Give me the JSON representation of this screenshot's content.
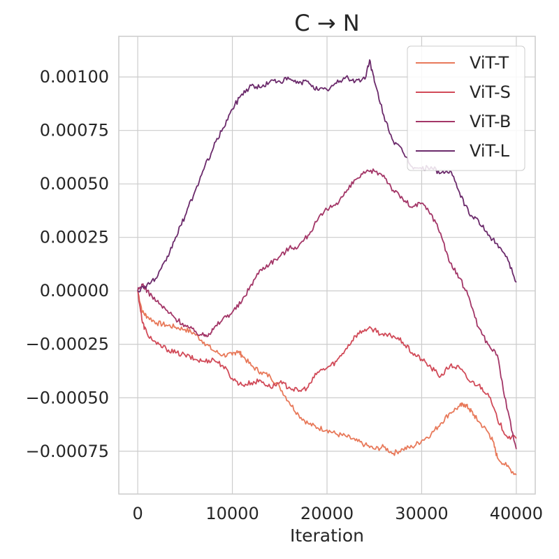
{
  "chart_data": {
    "type": "line",
    "title": "C → N",
    "xlabel": "Iteration",
    "ylabel": "",
    "xlim": [
      -2000,
      42000
    ],
    "ylim": [
      -0.00095,
      0.00119
    ],
    "grid": true,
    "legend_position": "top-right",
    "x_ticks": [
      0,
      10000,
      20000,
      30000,
      40000
    ],
    "x_tick_labels": [
      "0",
      "10000",
      "20000",
      "30000",
      "40000"
    ],
    "y_ticks": [
      -0.00075,
      -0.0005,
      -0.00025,
      0.0,
      0.00025,
      0.0005,
      0.00075,
      0.001
    ],
    "y_tick_labels": [
      "−0.00075",
      "−0.00050",
      "−0.00025",
      "0.00000",
      "0.00025",
      "0.00050",
      "0.00075",
      "0.00100"
    ],
    "series": [
      {
        "name": "ViT-T",
        "color": "#e8795a",
        "x": [
          0,
          500,
          1000,
          2000,
          3000,
          4000,
          5000,
          6000,
          7000,
          8000,
          9000,
          10000,
          10500,
          11000,
          12000,
          13000,
          14000,
          15000,
          16000,
          17000,
          18000,
          19000,
          20000,
          21000,
          22000,
          23000,
          24000,
          25000,
          26000,
          27000,
          28000,
          29000,
          30000,
          31000,
          32000,
          33000,
          34000,
          34500,
          35000,
          35500,
          36000,
          37000,
          37500,
          38000,
          39000,
          40000
        ],
        "y": [
          0.0,
          -0.0001,
          -0.00012,
          -0.00015,
          -0.00016,
          -0.00017,
          -0.00018,
          -0.0002,
          -0.00024,
          -0.00028,
          -0.0003,
          -0.0003,
          -0.00028,
          -0.0003,
          -0.00035,
          -0.00038,
          -0.0004,
          -0.00045,
          -0.00052,
          -0.00058,
          -0.00062,
          -0.00064,
          -0.00065,
          -0.00067,
          -0.00068,
          -0.0007,
          -0.00072,
          -0.00074,
          -0.00073,
          -0.00076,
          -0.00074,
          -0.00073,
          -0.0007,
          -0.00067,
          -0.00062,
          -0.00057,
          -0.00054,
          -0.00053,
          -0.00055,
          -0.00058,
          -0.00061,
          -0.00066,
          -0.0007,
          -0.00078,
          -0.00082,
          -0.00086
        ]
      },
      {
        "name": "ViT-S",
        "color": "#d14a58",
        "x": [
          0,
          500,
          1000,
          2000,
          3000,
          4000,
          5000,
          6000,
          7000,
          8000,
          9000,
          10000,
          11000,
          12000,
          13000,
          14000,
          15000,
          16000,
          17000,
          18000,
          19000,
          20000,
          21000,
          22000,
          23000,
          24000,
          25000,
          26000,
          27000,
          28000,
          29000,
          30000,
          31000,
          32000,
          33000,
          34000,
          35000,
          36000,
          37000,
          38000,
          39000,
          40000
        ],
        "y": [
          0.0,
          -0.00015,
          -0.0002,
          -0.00025,
          -0.00027,
          -0.00029,
          -0.0003,
          -0.00032,
          -0.00033,
          -0.00032,
          -0.00035,
          -0.00041,
          -0.00044,
          -0.00043,
          -0.00042,
          -0.00045,
          -0.00043,
          -0.00045,
          -0.00047,
          -0.00045,
          -0.00038,
          -0.00036,
          -0.00033,
          -0.00027,
          -0.00021,
          -0.00018,
          -0.00018,
          -0.00021,
          -0.00021,
          -0.00024,
          -0.00029,
          -0.00032,
          -0.00036,
          -0.0004,
          -0.00035,
          -0.00036,
          -0.00042,
          -0.00044,
          -0.00048,
          -0.0006,
          -0.00068,
          -0.00069
        ]
      },
      {
        "name": "ViT-B",
        "color": "#a33667",
        "x": [
          0,
          500,
          1000,
          2000,
          3000,
          4000,
          5000,
          6000,
          7000,
          7500,
          8000,
          9000,
          10000,
          11000,
          12000,
          13000,
          14000,
          15000,
          16000,
          17000,
          18000,
          19000,
          20000,
          21000,
          22000,
          23000,
          24000,
          25000,
          26000,
          27000,
          28000,
          29000,
          30000,
          31000,
          32000,
          33000,
          34000,
          35000,
          36000,
          37000,
          38000,
          39000,
          40000
        ],
        "y": [
          0.0,
          3e-05,
          0.0,
          -5e-05,
          -9e-05,
          -0.00013,
          -0.00016,
          -0.00019,
          -0.00021,
          -0.0002,
          -0.00018,
          -0.00013,
          -0.0001,
          -5e-05,
          3e-05,
          0.0001,
          0.00013,
          0.00016,
          0.0002,
          0.00021,
          0.00026,
          0.00033,
          0.00038,
          0.00041,
          0.00046,
          0.00052,
          0.00055,
          0.00056,
          0.00054,
          0.00047,
          0.00043,
          0.00039,
          0.00041,
          0.00036,
          0.00027,
          0.00013,
          6e-05,
          -3e-05,
          -0.00017,
          -0.00025,
          -0.0003,
          -0.00055,
          -0.00074
        ]
      },
      {
        "name": "ViT-L",
        "color": "#6b2a6b",
        "x": [
          0,
          1000,
          2000,
          3000,
          4000,
          5000,
          6000,
          7000,
          8000,
          9000,
          10000,
          11000,
          12000,
          13000,
          14000,
          15000,
          16000,
          17000,
          18000,
          19000,
          20000,
          21000,
          22000,
          23000,
          24000,
          24500,
          25000,
          26000,
          27000,
          28000,
          29000,
          30000,
          31000,
          32000,
          33000,
          34000,
          35000,
          36000,
          37000,
          38000,
          39000,
          40000
        ],
        "y": [
          0.0,
          3e-05,
          6e-05,
          0.00014,
          0.00025,
          0.00035,
          0.00046,
          0.00057,
          0.00067,
          0.00076,
          0.00085,
          0.00092,
          0.00096,
          0.00095,
          0.00098,
          0.00098,
          0.00099,
          0.00097,
          0.00098,
          0.00094,
          0.00094,
          0.00097,
          0.001,
          0.00098,
          0.00099,
          0.00108,
          0.00098,
          0.00082,
          0.0007,
          0.00065,
          0.00058,
          0.00057,
          0.00058,
          0.00055,
          0.00056,
          0.00046,
          0.00036,
          0.00033,
          0.00026,
          0.00022,
          0.00016,
          4e-05
        ]
      }
    ]
  }
}
